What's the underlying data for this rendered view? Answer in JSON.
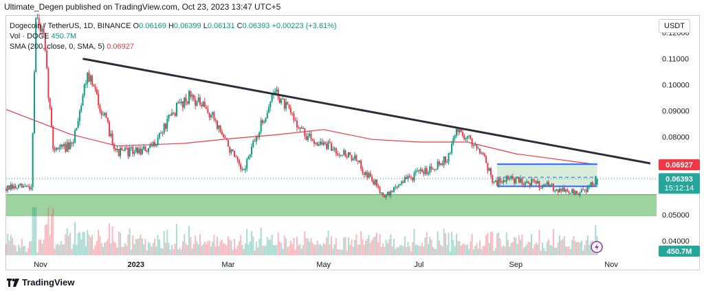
{
  "publisher_line": "Ultimate_Degen published on TradingView.com, Oct 23, 2023 13:47 UTC+5",
  "footer_brand": "TradingView",
  "legend": {
    "symbol": "Dogecoin / TetherUS, 1D, BINANCE",
    "open_label": "O",
    "open": "0.06169",
    "high_label": "H",
    "high": "0.06399",
    "low_label": "L",
    "low": "0.06131",
    "close_label": "C",
    "close": "0.06393",
    "change": "+0.00223 (+3.61%)",
    "vol_label": "Vol · DOGE",
    "vol": "450.7M",
    "sma_label": "SMA (200, close, 0, SMA, 5)",
    "sma": "0.06927"
  },
  "currency_button": "USDT",
  "badges": {
    "sma_value": "0.06927",
    "price_value": "0.06393",
    "countdown": "15:12:14",
    "volume_value": "450.7M"
  },
  "colors": {
    "up": "#089981",
    "down": "#f23645",
    "sma": "#f23645",
    "support_zone": "#4caf50",
    "range_box_fill": "#c8e6c9",
    "range_box_border": "#2962ff",
    "trendline": "#2a2e39",
    "price_badge": "#26a69a",
    "sma_badge": "#f23645"
  },
  "chart_data": {
    "type": "candlestick",
    "y_axis_ticks": [
      "0.12000",
      "0.11000",
      "0.10000",
      "0.09000",
      "0.08000",
      "0.05000",
      "0.04000"
    ],
    "x_axis_ticks": [
      "Nov",
      "2023",
      "Mar",
      "May",
      "Jul",
      "Sep",
      "Nov"
    ],
    "ylim": [
      0.0345,
      0.1265
    ],
    "x_range": [
      "2022-10-10",
      "2023-11-30"
    ],
    "key_prices": [
      {
        "date": "2022-10-10",
        "price": 0.06
      },
      {
        "date": "2022-10-26",
        "price": 0.061
      },
      {
        "date": "2022-10-29",
        "price": 0.126
      },
      {
        "date": "2022-11-03",
        "price": 0.118
      },
      {
        "date": "2022-11-09",
        "price": 0.076
      },
      {
        "date": "2022-11-21",
        "price": 0.076
      },
      {
        "date": "2022-12-01",
        "price": 0.105
      },
      {
        "date": "2022-12-20",
        "price": 0.074
      },
      {
        "date": "2023-01-10",
        "price": 0.075
      },
      {
        "date": "2023-01-28",
        "price": 0.092
      },
      {
        "date": "2023-02-05",
        "price": 0.096
      },
      {
        "date": "2023-02-20",
        "price": 0.087
      },
      {
        "date": "2023-03-10",
        "price": 0.066
      },
      {
        "date": "2023-03-31",
        "price": 0.098
      },
      {
        "date": "2023-04-05",
        "price": 0.093
      },
      {
        "date": "2023-04-20",
        "price": 0.08
      },
      {
        "date": "2023-05-20",
        "price": 0.072
      },
      {
        "date": "2023-06-10",
        "price": 0.057
      },
      {
        "date": "2023-06-20",
        "price": 0.063
      },
      {
        "date": "2023-07-05",
        "price": 0.067
      },
      {
        "date": "2023-07-20",
        "price": 0.072
      },
      {
        "date": "2023-07-25",
        "price": 0.083
      },
      {
        "date": "2023-08-10",
        "price": 0.075
      },
      {
        "date": "2023-08-18",
        "price": 0.062
      },
      {
        "date": "2023-08-25",
        "price": 0.064
      },
      {
        "date": "2023-09-15",
        "price": 0.062
      },
      {
        "date": "2023-10-12",
        "price": 0.058
      },
      {
        "date": "2023-10-23",
        "price": 0.0639
      }
    ],
    "sma_200": [
      {
        "date": "2022-10-10",
        "value": 0.0905
      },
      {
        "date": "2022-11-20",
        "value": 0.081
      },
      {
        "date": "2022-12-20",
        "value": 0.0765
      },
      {
        "date": "2023-02-01",
        "value": 0.0775
      },
      {
        "date": "2023-03-01",
        "value": 0.0792
      },
      {
        "date": "2023-04-01",
        "value": 0.0808
      },
      {
        "date": "2023-05-01",
        "value": 0.0828
      },
      {
        "date": "2023-06-01",
        "value": 0.079
      },
      {
        "date": "2023-07-01",
        "value": 0.078
      },
      {
        "date": "2023-08-01",
        "value": 0.078
      },
      {
        "date": "2023-09-01",
        "value": 0.0735
      },
      {
        "date": "2023-10-23",
        "value": 0.0693
      }
    ],
    "trendline": {
      "start": {
        "date": "2022-11-28",
        "price": 0.11
      },
      "end": {
        "date": "2023-11-26",
        "price": 0.0698
      }
    },
    "support_zone": {
      "low": 0.0495,
      "high": 0.0578
    },
    "range_box": {
      "start": "2023-08-20",
      "end": "2023-10-23",
      "low": 0.061,
      "high": 0.0695,
      "mid": 0.0645
    },
    "current_price": 0.06393,
    "volume_max_label": "450.7M"
  }
}
